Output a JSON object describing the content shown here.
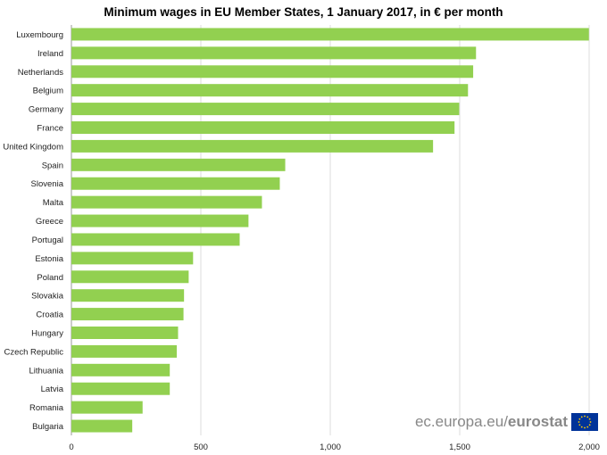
{
  "chart_data": {
    "type": "bar",
    "orientation": "horizontal",
    "title": "Minimum wages in EU Member States, 1 January 2017, in € per month",
    "categories": [
      "Luxembourg",
      "Ireland",
      "Netherlands",
      "Belgium",
      "Germany",
      "France",
      "United Kingdom",
      "Spain",
      "Slovenia",
      "Malta",
      "Greece",
      "Portugal",
      "Estonia",
      "Poland",
      "Slovakia",
      "Croatia",
      "Hungary",
      "Czech Republic",
      "Lithuania",
      "Latvia",
      "Romania",
      "Bulgaria"
    ],
    "values": [
      1999,
      1563,
      1552,
      1532,
      1498,
      1480,
      1397,
      826,
      805,
      736,
      684,
      650,
      470,
      453,
      435,
      433,
      412,
      407,
      380,
      380,
      275,
      235
    ],
    "xlim": [
      0,
      2000
    ],
    "xticks": [
      0,
      500,
      1000,
      1500,
      2000
    ],
    "xtick_labels": [
      "0",
      "500",
      "1,000",
      "1,500",
      "2,000"
    ],
    "grid": "vertical",
    "bar_color": "#92d050",
    "xlabel": "",
    "ylabel": ""
  },
  "watermark": {
    "text_regular": "ec.europa.eu/",
    "text_bold": "eurostat",
    "flag_color": "#003399",
    "star_color": "#ffcc00",
    "text_color": "#888888"
  }
}
